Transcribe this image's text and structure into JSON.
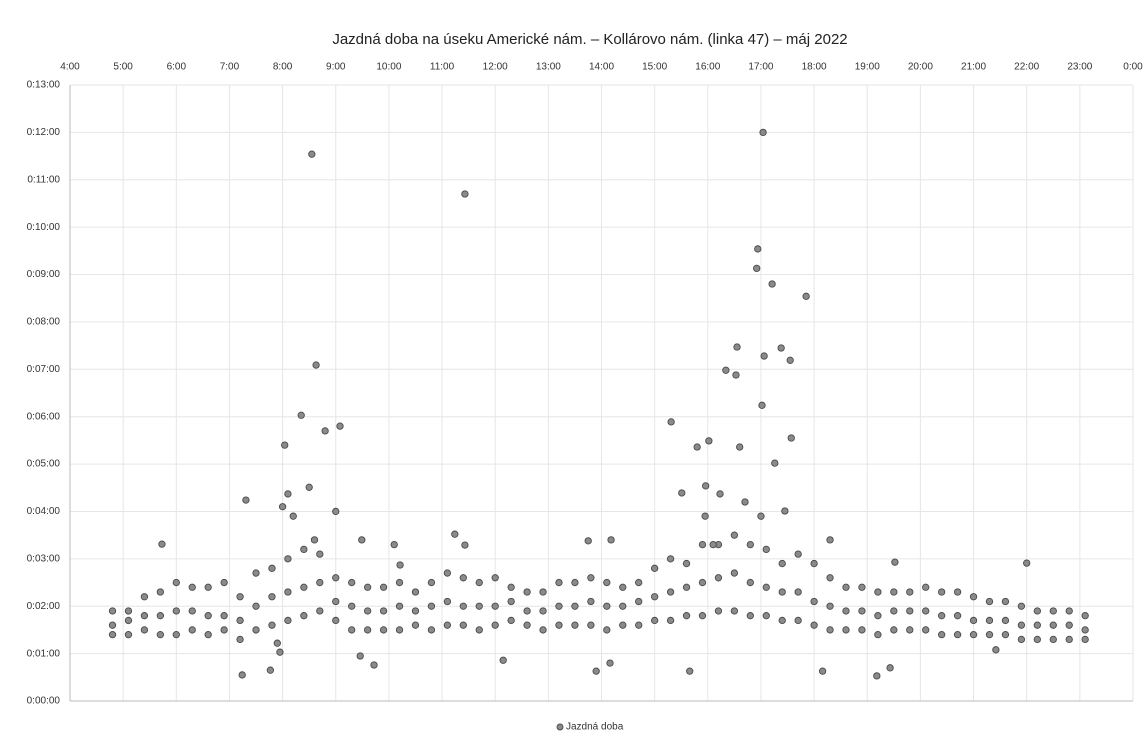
{
  "chart_data": {
    "type": "scatter",
    "title": "Jazdná doba na úseku Americké nám. – Kollárovo nám. (linka 47) – máj 2022",
    "xlim": [
      4,
      24
    ],
    "xticks": [
      {
        "value": 4,
        "label": "4:00"
      },
      {
        "value": 5,
        "label": "5:00"
      },
      {
        "value": 6,
        "label": "6:00"
      },
      {
        "value": 7,
        "label": "7:00"
      },
      {
        "value": 8,
        "label": "8:00"
      },
      {
        "value": 9,
        "label": "9:00"
      },
      {
        "value": 10,
        "label": "10:00"
      },
      {
        "value": 11,
        "label": "11:00"
      },
      {
        "value": 12,
        "label": "12:00"
      },
      {
        "value": 13,
        "label": "13:00"
      },
      {
        "value": 14,
        "label": "14:00"
      },
      {
        "value": 15,
        "label": "15:00"
      },
      {
        "value": 16,
        "label": "16:00"
      },
      {
        "value": 17,
        "label": "17:00"
      },
      {
        "value": 18,
        "label": "18:00"
      },
      {
        "value": 19,
        "label": "19:00"
      },
      {
        "value": 20,
        "label": "20:00"
      },
      {
        "value": 21,
        "label": "21:00"
      },
      {
        "value": 22,
        "label": "22:00"
      },
      {
        "value": 23,
        "label": "23:00"
      },
      {
        "value": 24,
        "label": "0:00"
      }
    ],
    "ylim": [
      0,
      13
    ],
    "yticks": [
      {
        "value": 0,
        "label": "0:00:00"
      },
      {
        "value": 1,
        "label": "0:01:00"
      },
      {
        "value": 2,
        "label": "0:02:00"
      },
      {
        "value": 3,
        "label": "0:03:00"
      },
      {
        "value": 4,
        "label": "0:04:00"
      },
      {
        "value": 5,
        "label": "0:05:00"
      },
      {
        "value": 6,
        "label": "0:06:00"
      },
      {
        "value": 7,
        "label": "0:07:00"
      },
      {
        "value": 8,
        "label": "0:08:00"
      },
      {
        "value": 9,
        "label": "0:09:00"
      },
      {
        "value": 10,
        "label": "0:10:00"
      },
      {
        "value": 11,
        "label": "0:11:00"
      },
      {
        "value": 12,
        "label": "0:12:00"
      },
      {
        "value": 13,
        "label": "0:13:00"
      }
    ],
    "grid": true,
    "legend": "bottom",
    "x": [
      4.8,
      4.8,
      4.8,
      5.1,
      5.1,
      5.1,
      5.4,
      5.4,
      5.4,
      5.7,
      5.7,
      5.7,
      6.0,
      6.0,
      6.0,
      6.3,
      6.3,
      6.3,
      6.6,
      6.6,
      6.6,
      6.9,
      6.9,
      6.9,
      7.2,
      7.2,
      7.2,
      7.5,
      7.5,
      7.5,
      7.8,
      7.8,
      7.8,
      8.1,
      8.1,
      8.1,
      8.4,
      8.4,
      8.4,
      8.7,
      8.7,
      8.7,
      9.0,
      9.0,
      9.0,
      9.3,
      9.3,
      9.3,
      9.6,
      9.6,
      9.6,
      9.9,
      9.9,
      9.9,
      10.2,
      10.2,
      10.2,
      10.5,
      10.5,
      10.5,
      10.8,
      10.8,
      10.8,
      11.1,
      11.1,
      11.1,
      11.4,
      11.4,
      11.4,
      11.7,
      11.7,
      11.7,
      12.0,
      12.0,
      12.0,
      12.3,
      12.3,
      12.3,
      12.6,
      12.6,
      12.6,
      12.9,
      12.9,
      12.9,
      13.2,
      13.2,
      13.2,
      13.5,
      13.5,
      13.5,
      13.8,
      13.8,
      13.8,
      14.1,
      14.1,
      14.1,
      14.4,
      14.4,
      14.4,
      14.7,
      14.7,
      14.7,
      15.0,
      15.0,
      15.0,
      15.3,
      15.3,
      15.3,
      15.6,
      15.6,
      15.6,
      15.9,
      15.9,
      15.9,
      16.2,
      16.2,
      16.2,
      16.5,
      16.5,
      16.5,
      16.8,
      16.8,
      16.8,
      17.1,
      17.1,
      17.1,
      17.4,
      17.4,
      17.4,
      17.7,
      17.7,
      17.7,
      18.0,
      18.0,
      18.0,
      18.3,
      18.3,
      18.3,
      18.6,
      18.6,
      18.6,
      18.9,
      18.9,
      18.9,
      19.2,
      19.2,
      19.2,
      19.5,
      19.5,
      19.5,
      19.8,
      19.8,
      19.8,
      20.1,
      20.1,
      20.1,
      20.4,
      20.4,
      20.4,
      20.7,
      20.7,
      20.7,
      21.0,
      21.0,
      21.0,
      21.3,
      21.3,
      21.3,
      21.6,
      21.6,
      21.6,
      21.9,
      21.9,
      21.9,
      22.2,
      22.2,
      22.2,
      22.5,
      22.5,
      22.5,
      22.8,
      22.8,
      22.8,
      23.1,
      23.1,
      23.1,
      8.55,
      11.43,
      17.04,
      16.94,
      16.92,
      17.21,
      17.85,
      8.63,
      8.35,
      8.8,
      9.08,
      8.04,
      15.31,
      16.55,
      16.34,
      16.53,
      17.06,
      17.38,
      17.55,
      17.02,
      17.26,
      17.57,
      16.6,
      16.02,
      15.8,
      7.31,
      8.5,
      8.1,
      5.73,
      11.24,
      11.43,
      9.49,
      10.21,
      13.75,
      14.18,
      15.51,
      15.96,
      16.23,
      17.45,
      19.52,
      22.0,
      7.24,
      7.77,
      9.46,
      9.72,
      12.15,
      13.9,
      14.16,
      15.66,
      18.16,
      19.18,
      19.43,
      21.42,
      7.95,
      7.9,
      8.0,
      8.2,
      8.6,
      9.0,
      16.7,
      17.0,
      15.95,
      16.1,
      10.1,
      18.3
    ],
    "series": [
      {
        "name": "Jazdná doba",
        "color": "#8a8a8a",
        "values": [
          1.4,
          1.6,
          1.9,
          1.4,
          1.7,
          1.9,
          1.5,
          1.8,
          2.2,
          1.4,
          1.8,
          2.3,
          1.4,
          1.9,
          2.5,
          1.5,
          1.9,
          2.4,
          1.4,
          1.8,
          2.4,
          1.5,
          1.8,
          2.5,
          1.3,
          1.7,
          2.2,
          1.5,
          2.0,
          2.7,
          1.6,
          2.2,
          2.8,
          1.7,
          2.3,
          3.0,
          1.8,
          2.4,
          3.2,
          1.9,
          2.5,
          3.1,
          1.7,
          2.1,
          2.6,
          1.5,
          2.0,
          2.5,
          1.5,
          1.9,
          2.4,
          1.5,
          1.9,
          2.4,
          1.5,
          2.0,
          2.5,
          1.6,
          1.9,
          2.3,
          1.5,
          2.0,
          2.5,
          1.6,
          2.1,
          2.7,
          1.6,
          2.0,
          2.6,
          1.5,
          2.0,
          2.5,
          1.6,
          2.0,
          2.6,
          1.7,
          2.1,
          2.4,
          1.6,
          1.9,
          2.3,
          1.5,
          1.9,
          2.3,
          1.6,
          2.0,
          2.5,
          1.6,
          2.0,
          2.5,
          1.6,
          2.1,
          2.6,
          1.5,
          2.0,
          2.5,
          1.6,
          2.0,
          2.4,
          1.6,
          2.1,
          2.5,
          1.7,
          2.2,
          2.8,
          1.7,
          2.3,
          3.0,
          1.8,
          2.4,
          2.9,
          1.8,
          2.5,
          3.3,
          1.9,
          2.6,
          3.3,
          1.9,
          2.7,
          3.5,
          1.8,
          2.5,
          3.3,
          1.8,
          2.4,
          3.2,
          1.7,
          2.3,
          2.9,
          1.7,
          2.3,
          3.1,
          1.6,
          2.1,
          2.9,
          1.5,
          2.0,
          2.6,
          1.5,
          1.9,
          2.4,
          1.5,
          1.9,
          2.4,
          1.4,
          1.8,
          2.3,
          1.5,
          1.9,
          2.3,
          1.5,
          1.9,
          2.3,
          1.5,
          1.9,
          2.4,
          1.4,
          1.8,
          2.3,
          1.4,
          1.8,
          2.3,
          1.4,
          1.7,
          2.2,
          1.4,
          1.7,
          2.1,
          1.4,
          1.7,
          2.1,
          1.3,
          1.6,
          2.0,
          1.3,
          1.6,
          1.9,
          1.3,
          1.6,
          1.9,
          1.3,
          1.6,
          1.9,
          1.3,
          1.5,
          1.8,
          11.54,
          10.7,
          12.0,
          9.54,
          9.13,
          8.8,
          8.54,
          7.09,
          6.03,
          5.7,
          5.8,
          5.4,
          5.89,
          7.47,
          6.98,
          6.88,
          7.28,
          7.45,
          7.19,
          6.24,
          5.02,
          5.55,
          5.36,
          5.49,
          5.36,
          4.24,
          4.51,
          4.37,
          3.31,
          3.52,
          3.29,
          3.4,
          2.87,
          3.38,
          3.4,
          4.39,
          4.54,
          4.37,
          4.01,
          2.93,
          2.91,
          0.55,
          0.65,
          0.95,
          0.76,
          0.86,
          0.63,
          0.8,
          0.63,
          0.63,
          0.53,
          0.7,
          1.08,
          1.03,
          1.22,
          4.1,
          3.9,
          3.4,
          4.0,
          4.2,
          3.9,
          3.9,
          3.3,
          3.3,
          3.4
        ]
      }
    ]
  }
}
